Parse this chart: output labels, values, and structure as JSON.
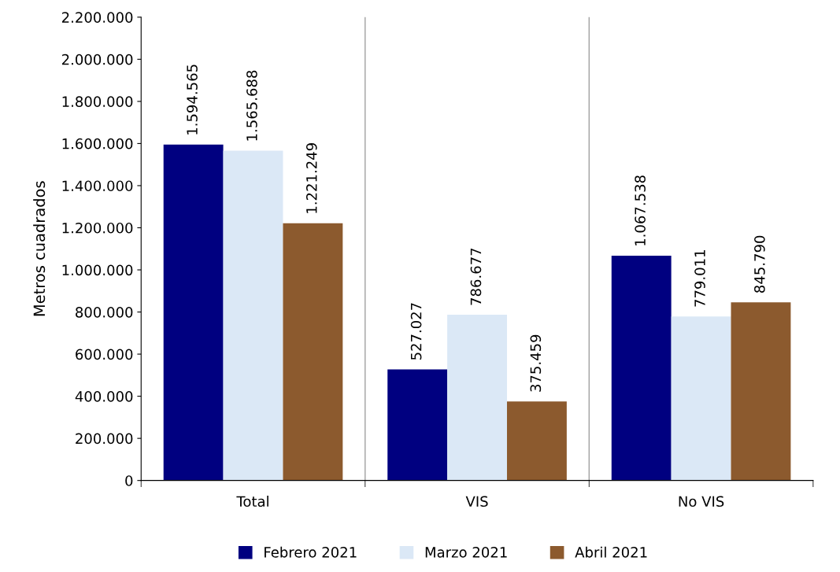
{
  "chart_data": {
    "type": "bar",
    "ylabel": "Metros cuadrados",
    "categories": [
      "Total",
      "VIS",
      "No VIS"
    ],
    "series": [
      {
        "name": "Febrero 2021",
        "color": "#000080",
        "values": [
          1594565,
          527027,
          1067538
        ],
        "value_labels": [
          "1.594.565",
          "527.027",
          "1.067.538"
        ]
      },
      {
        "name": "Marzo 2021",
        "color": "#dbe8f6",
        "values": [
          1565688,
          786677,
          779011
        ],
        "value_labels": [
          "1.565.688",
          "786.677",
          "779.011"
        ]
      },
      {
        "name": "Abril 2021",
        "color": "#8c5a2e",
        "values": [
          1221249,
          375459,
          845790
        ],
        "value_labels": [
          "1.221.249",
          "375.459",
          "845.790"
        ]
      }
    ],
    "ylim": [
      0,
      2200000
    ],
    "yticks": [
      {
        "value": 0,
        "label": "0"
      },
      {
        "value": 200000,
        "label": "200.000"
      },
      {
        "value": 400000,
        "label": "400.000"
      },
      {
        "value": 600000,
        "label": "600.000"
      },
      {
        "value": 800000,
        "label": "800.000"
      },
      {
        "value": 1000000,
        "label": "1.000.000"
      },
      {
        "value": 1200000,
        "label": "1.200.000"
      },
      {
        "value": 1400000,
        "label": "1.400.000"
      },
      {
        "value": 1600000,
        "label": "1.600.000"
      },
      {
        "value": 1800000,
        "label": "1.800.000"
      },
      {
        "value": 2000000,
        "label": "2.000.000"
      },
      {
        "value": 2200000,
        "label": "2.200.000"
      }
    ],
    "grid": "x",
    "legend": "bottom"
  }
}
